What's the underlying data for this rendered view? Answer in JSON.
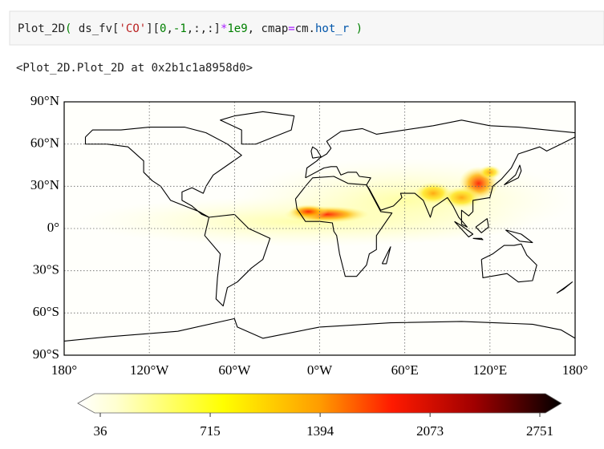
{
  "code_cell": {
    "tokens": [
      "Plot_2D",
      "(",
      " ds_fv[",
      "'CO'",
      "][",
      "0",
      ",",
      "-1",
      ",:,:]",
      "*",
      "1e9",
      ", cmap",
      "=",
      "cm.",
      "hot_r",
      " )"
    ]
  },
  "output": {
    "text": "<Plot_2D.Plot_2D at 0x2b1c1a8958d0>"
  },
  "map": {
    "lat_lim": [
      -90,
      90
    ],
    "lon_lim": [
      -180,
      180
    ],
    "grid": true,
    "lat_ticks": [
      {
        "value": 90,
        "label": "90°N"
      },
      {
        "value": 60,
        "label": "60°N"
      },
      {
        "value": 30,
        "label": "30°N"
      },
      {
        "value": 0,
        "label": "0°"
      },
      {
        "value": -30,
        "label": "30°S"
      },
      {
        "value": -60,
        "label": "60°S"
      },
      {
        "value": -90,
        "label": "90°S"
      }
    ],
    "lon_ticks": [
      {
        "value": -180,
        "label": "180°"
      },
      {
        "value": -120,
        "label": "120°W"
      },
      {
        "value": -60,
        "label": "60°W"
      },
      {
        "value": 0,
        "label": "0°W"
      },
      {
        "value": 60,
        "label": "60°E"
      },
      {
        "value": 120,
        "label": "120°E"
      },
      {
        "value": 180,
        "label": "180°"
      }
    ]
  },
  "colorbar": {
    "lim": [
      36,
      2751
    ],
    "ticks": [
      36,
      715,
      1394,
      2073,
      2751
    ]
  }
}
